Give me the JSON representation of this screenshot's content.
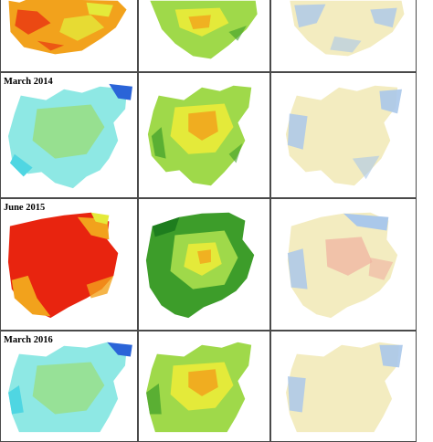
{
  "panels": {
    "row_labels": [
      "March 2014",
      "June 2015",
      "March 2016"
    ]
  },
  "colors": {
    "border": "#4a4a4a",
    "red": "#e8240f",
    "orange": "#f2a21c",
    "yellow": "#e4ea3a",
    "light_green": "#9fd94a",
    "green": "#3d9d2a",
    "dark_green": "#1e7d1e",
    "cyan": "#4fd6e2",
    "light_cyan": "#8ee8e4",
    "blue": "#2a64d8",
    "pale_yellow": "#f3ecc0",
    "pale_blue": "#aac8ea",
    "pale_red": "#f0b0a0"
  }
}
